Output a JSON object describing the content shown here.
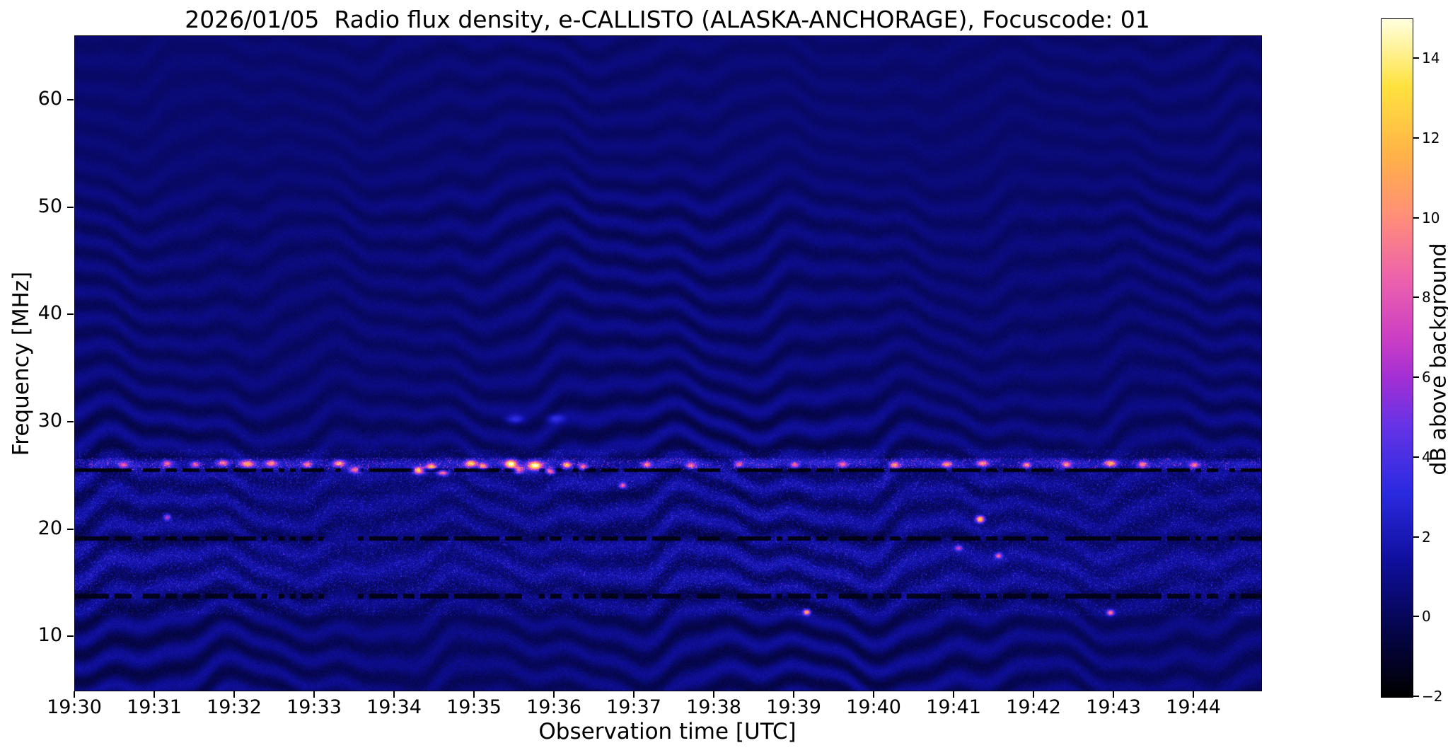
{
  "chart_data": {
    "type": "heatmap",
    "title": "2026/01/05  Radio flux density, e-CALLISTO (ALASKA-ANCHORAGE), Focuscode: 01",
    "date": "2026/01/05",
    "station": "ALASKA-ANCHORAGE",
    "focuscode": "01",
    "xlabel": "Observation time [UTC]",
    "ylabel": "Frequency [MHz]",
    "x_axis": {
      "start_minutes": 0,
      "end_minutes": 14.84,
      "tick_positions_minutes": [
        0,
        1,
        2,
        3,
        4,
        5,
        6,
        7,
        8,
        9,
        10,
        11,
        12,
        13,
        14
      ],
      "tick_labels": [
        "19:30",
        "19:31",
        "19:32",
        "19:33",
        "19:34",
        "19:35",
        "19:36",
        "19:37",
        "19:38",
        "19:39",
        "19:40",
        "19:41",
        "19:42",
        "19:43",
        "19:44"
      ]
    },
    "y_axis": {
      "min_mhz": 5,
      "max_mhz": 66,
      "tick_values": [
        10,
        20,
        30,
        40,
        50,
        60
      ],
      "tick_labels": [
        "10",
        "20",
        "30",
        "40",
        "50",
        "60"
      ]
    },
    "colorbar": {
      "label": "dB above background",
      "min": -2,
      "max": 15,
      "tick_values": [
        -2,
        0,
        2,
        4,
        6,
        8,
        10,
        12,
        14
      ],
      "tick_labels": [
        "−2",
        "0",
        "2",
        "4",
        "6",
        "8",
        "10",
        "12",
        "14"
      ]
    },
    "colormap": {
      "name": "gnuplot2-like",
      "stops": [
        [
          0.0,
          "#000000"
        ],
        [
          0.1,
          "#05054d"
        ],
        [
          0.2,
          "#0f0f9e"
        ],
        [
          0.3,
          "#2a2ae0"
        ],
        [
          0.4,
          "#6633e6"
        ],
        [
          0.47,
          "#a32fd4"
        ],
        [
          0.53,
          "#cc3fc4"
        ],
        [
          0.62,
          "#ee64ab"
        ],
        [
          0.71,
          "#ff8f77"
        ],
        [
          0.8,
          "#ffb347"
        ],
        [
          0.9,
          "#ffe23e"
        ],
        [
          1.0,
          "#ffffe0"
        ]
      ]
    },
    "texture": {
      "base_db": 0.45,
      "amp_low": 0.85,
      "amp_mid": 0.55,
      "amp_high": 0.28,
      "noise_low": 0.9,
      "noise_high": 0.35
    },
    "bands": [
      {
        "center_mhz": 26.15,
        "half_width_mhz": 0.55,
        "boost_db": 1.3,
        "speckle_db": 6
      },
      {
        "center_mhz": 24.6,
        "half_width_mhz": 1.1,
        "boost_db": 0.3,
        "speckle_db": 2.5
      },
      {
        "center_mhz": 21.5,
        "half_width_mhz": 1.7,
        "boost_db": 0.2,
        "speckle_db": 2
      },
      {
        "center_mhz": 16.6,
        "half_width_mhz": 2.3,
        "boost_db": 0.35,
        "speckle_db": 2.5
      }
    ],
    "dropout_lines": [
      {
        "center_mhz": 25.55,
        "half_width_mhz": 0.18,
        "level_db": -1.6,
        "gap_fraction": 0.25
      },
      {
        "center_mhz": 19.15,
        "half_width_mhz": 0.2,
        "level_db": -1.4,
        "gap_fraction": 0.3
      },
      {
        "center_mhz": 13.8,
        "half_width_mhz": 0.25,
        "level_db": -1.3,
        "gap_fraction": 0.3
      }
    ],
    "hot_spots_format": "[minutes_after_19:30, MHz, peak_dB, sigma_minutes, sigma_MHz]",
    "hot_spots": [
      [
        0.6,
        26.05,
        6,
        0.04,
        0.2
      ],
      [
        1.15,
        26.2,
        7,
        0.04,
        0.2
      ],
      [
        1.5,
        26.1,
        7,
        0.04,
        0.2
      ],
      [
        1.85,
        26.25,
        8,
        0.05,
        0.2
      ],
      [
        2.15,
        26.15,
        9,
        0.06,
        0.22
      ],
      [
        2.45,
        26.2,
        8,
        0.05,
        0.2
      ],
      [
        2.9,
        26.1,
        7,
        0.04,
        0.2
      ],
      [
        3.3,
        26.2,
        9,
        0.05,
        0.2
      ],
      [
        3.5,
        25.6,
        8,
        0.05,
        0.2
      ],
      [
        4.3,
        25.55,
        12,
        0.05,
        0.22
      ],
      [
        4.45,
        25.9,
        10,
        0.04,
        0.2
      ],
      [
        4.6,
        25.35,
        9,
        0.05,
        0.2
      ],
      [
        4.95,
        26.2,
        12,
        0.05,
        0.22
      ],
      [
        5.1,
        25.95,
        9,
        0.04,
        0.2
      ],
      [
        5.45,
        26.15,
        14,
        0.05,
        0.25
      ],
      [
        5.55,
        25.6,
        11,
        0.04,
        0.2
      ],
      [
        5.75,
        26.0,
        14,
        0.06,
        0.28
      ],
      [
        5.95,
        25.5,
        10,
        0.04,
        0.2
      ],
      [
        6.15,
        26.05,
        11,
        0.04,
        0.22
      ],
      [
        6.35,
        25.9,
        8,
        0.04,
        0.2
      ],
      [
        6.85,
        24.15,
        8,
        0.03,
        0.18
      ],
      [
        7.15,
        26.1,
        8,
        0.04,
        0.2
      ],
      [
        7.7,
        26.0,
        7,
        0.04,
        0.2
      ],
      [
        8.3,
        26.1,
        7,
        0.04,
        0.2
      ],
      [
        9.0,
        26.05,
        7,
        0.04,
        0.2
      ],
      [
        9.6,
        26.1,
        7,
        0.04,
        0.2
      ],
      [
        10.25,
        26.05,
        8,
        0.04,
        0.2
      ],
      [
        10.9,
        26.1,
        8,
        0.04,
        0.2
      ],
      [
        11.35,
        26.2,
        9,
        0.05,
        0.2
      ],
      [
        11.9,
        26.05,
        8,
        0.04,
        0.2
      ],
      [
        12.4,
        26.1,
        8,
        0.04,
        0.2
      ],
      [
        12.95,
        26.2,
        9,
        0.05,
        0.2
      ],
      [
        13.35,
        26.1,
        8,
        0.04,
        0.2
      ],
      [
        14.0,
        26.05,
        7,
        0.04,
        0.2
      ],
      [
        1.15,
        21.2,
        6,
        0.03,
        0.2
      ],
      [
        9.15,
        12.35,
        11,
        0.03,
        0.18
      ],
      [
        11.32,
        21.0,
        13,
        0.035,
        0.22
      ],
      [
        12.95,
        12.3,
        9,
        0.03,
        0.18
      ],
      [
        11.55,
        17.6,
        7,
        0.03,
        0.18
      ],
      [
        11.05,
        18.3,
        6,
        0.03,
        0.18
      ],
      [
        5.5,
        30.3,
        3,
        0.08,
        0.3
      ],
      [
        6.0,
        30.4,
        2.5,
        0.08,
        0.3
      ]
    ]
  }
}
